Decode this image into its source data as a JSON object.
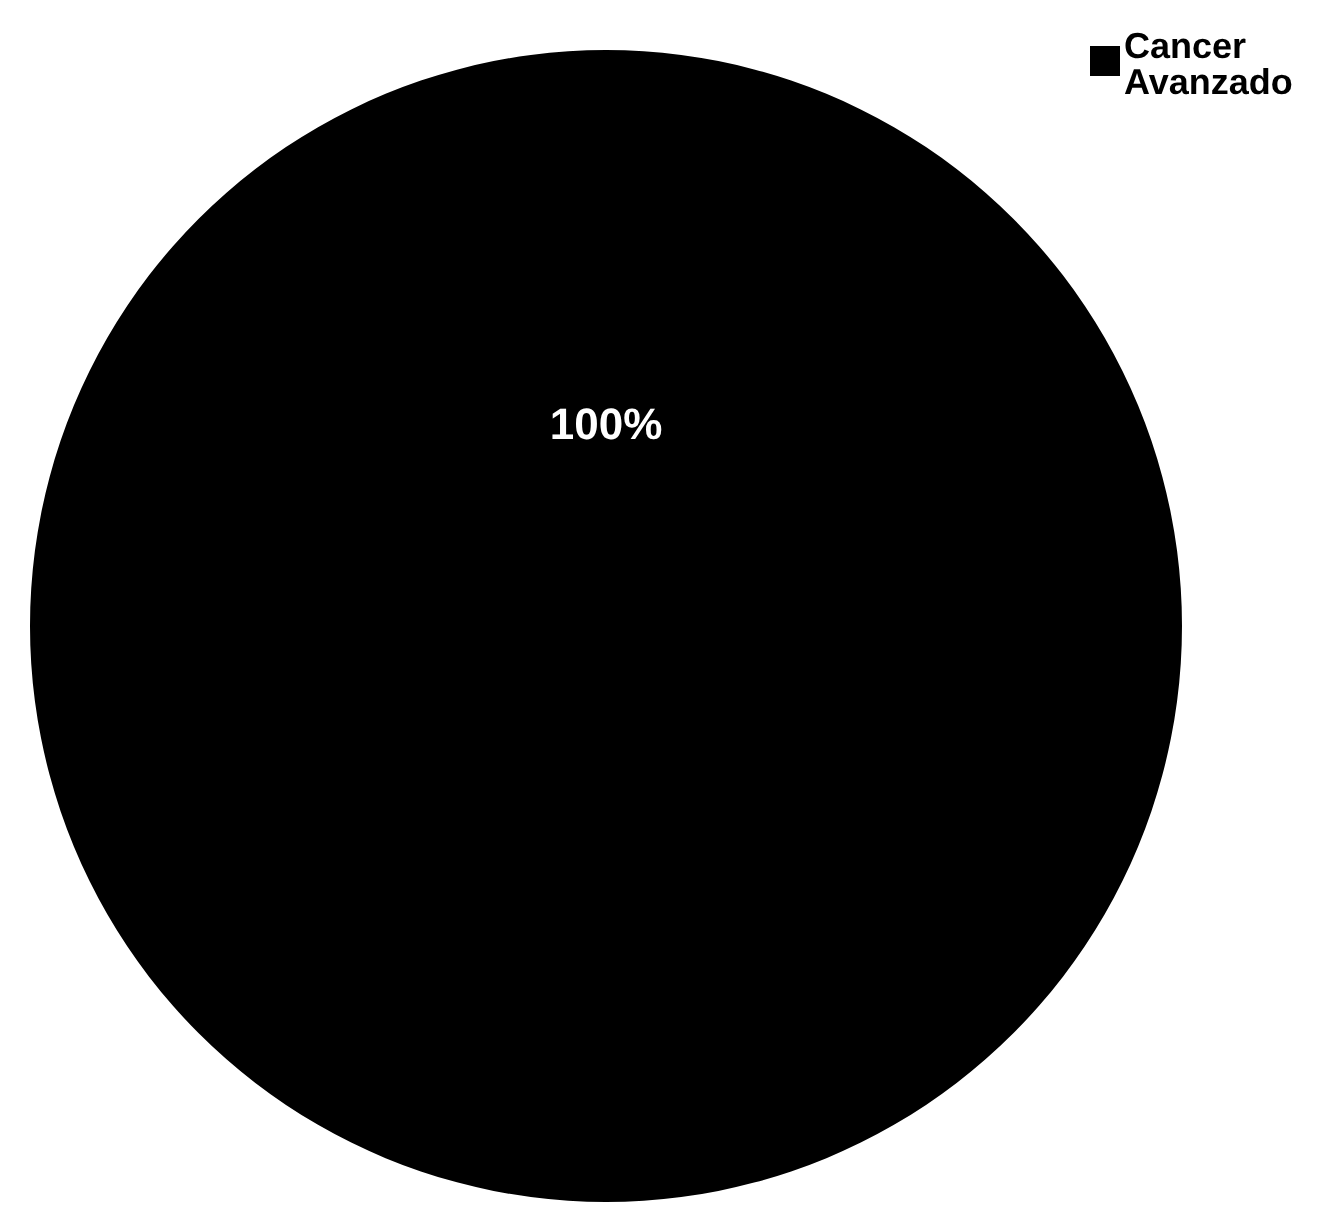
{
  "chart_data": {
    "type": "pie",
    "categories": [
      "Cancer Avanzado"
    ],
    "values": [
      100
    ],
    "value_labels": [
      "100%"
    ],
    "colors": [
      "#000000"
    ],
    "legend": "top right"
  }
}
